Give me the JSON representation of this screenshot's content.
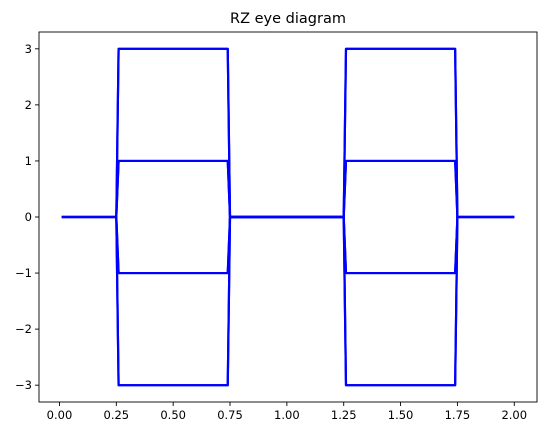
{
  "chart_data": {
    "type": "line",
    "title": "RZ eye diagram",
    "xlabel": "",
    "ylabel": "",
    "xlim": [
      -0.09,
      2.1
    ],
    "ylim": [
      -3.3,
      3.3
    ],
    "xticks": [
      0.0,
      0.25,
      0.5,
      0.75,
      1.0,
      1.25,
      1.5,
      1.75,
      2.0
    ],
    "xtick_labels": [
      "0.00",
      "0.25",
      "0.50",
      "0.75",
      "1.00",
      "1.25",
      "1.50",
      "1.75",
      "2.00"
    ],
    "yticks": [
      -3,
      -2,
      -1,
      0,
      1,
      2,
      3
    ],
    "ytick_labels": [
      "−3",
      "−2",
      "−1",
      "0",
      "1",
      "2",
      "3"
    ],
    "grid": false,
    "color": "#0000ff",
    "series": [
      {
        "x": [
          0.01,
          0.25,
          0.26,
          0.74,
          0.75,
          1.25,
          1.26,
          1.74,
          1.75,
          2.0
        ],
        "y": [
          0,
          0,
          3,
          3,
          0,
          0,
          3,
          3,
          0,
          0
        ]
      },
      {
        "x": [
          0.01,
          0.25,
          0.26,
          0.74,
          0.75,
          1.25,
          1.26,
          1.74,
          1.75,
          2.0
        ],
        "y": [
          0,
          0,
          1,
          1,
          0,
          0,
          1,
          1,
          0,
          0
        ]
      },
      {
        "x": [
          0.01,
          0.25,
          0.26,
          0.74,
          0.75,
          1.25,
          1.26,
          1.74,
          1.75,
          2.0
        ],
        "y": [
          0,
          0,
          -1,
          -1,
          0,
          0,
          -1,
          -1,
          0,
          0
        ]
      },
      {
        "x": [
          0.01,
          0.25,
          0.26,
          0.74,
          0.75,
          1.25,
          1.26,
          1.74,
          1.75,
          2.0
        ],
        "y": [
          0,
          0,
          -3,
          -3,
          0,
          0,
          -3,
          -3,
          0,
          0
        ]
      },
      {
        "x": [
          0.25,
          0.26,
          0.74,
          0.75,
          1.25,
          1.26,
          1.74,
          1.75
        ],
        "y": [
          0,
          3,
          3,
          0,
          0,
          -3,
          -3,
          0
        ]
      },
      {
        "x": [
          0.25,
          0.26,
          0.74,
          0.75,
          1.25,
          1.26,
          1.74,
          1.75
        ],
        "y": [
          0,
          -3,
          -3,
          0,
          0,
          3,
          3,
          0
        ]
      },
      {
        "x": [
          0.25,
          0.26,
          0.74,
          0.75,
          1.25,
          1.26,
          1.74,
          1.75
        ],
        "y": [
          0,
          1,
          1,
          0,
          0,
          -1,
          -1,
          0
        ]
      },
      {
        "x": [
          0.25,
          0.26,
          0.74,
          0.75,
          1.25,
          1.26,
          1.74,
          1.75
        ],
        "y": [
          0,
          -1,
          -1,
          0,
          0,
          1,
          1,
          0
        ]
      }
    ]
  }
}
